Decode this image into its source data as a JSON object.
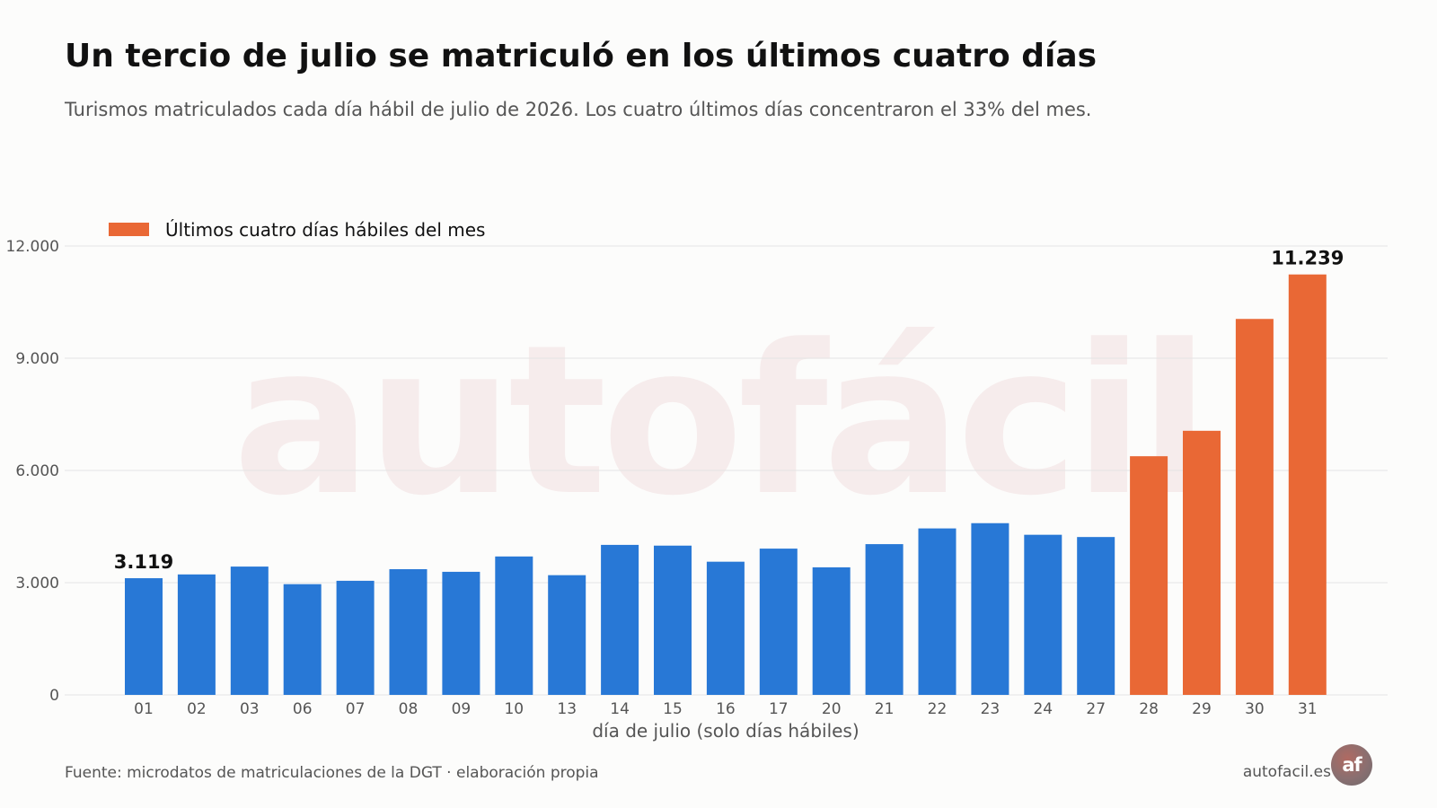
{
  "header": {
    "title": "Un tercio de julio se matriculó en los últimos cuatro días",
    "subtitle": "Turismos matriculados cada día hábil de julio de 2026. Los cuatro últimos días concentraron el 33% del mes."
  },
  "watermark": "autofácil",
  "footer": {
    "source": "Fuente: microdatos de matriculaciones de la DGT · elaboración propia",
    "brand": "autofacil.es",
    "logo_text": "af"
  },
  "colors": {
    "normal": "#2878d6",
    "highlight": "#e96835",
    "grid": "#e4e4e4",
    "text": "#555555",
    "watermark": "#f6ecec"
  },
  "chart_data": {
    "type": "bar",
    "categories": [
      "01",
      "02",
      "03",
      "06",
      "07",
      "08",
      "09",
      "10",
      "13",
      "14",
      "15",
      "16",
      "17",
      "20",
      "21",
      "22",
      "23",
      "24",
      "27",
      "28",
      "29",
      "30",
      "31"
    ],
    "values": [
      3119,
      3220,
      3430,
      2960,
      3050,
      3360,
      3290,
      3700,
      3200,
      4010,
      3990,
      3560,
      3910,
      3410,
      4030,
      4450,
      4590,
      4280,
      4220,
      6380,
      7060,
      10050,
      11239
    ],
    "highlighted": [
      false,
      false,
      false,
      false,
      false,
      false,
      false,
      false,
      false,
      false,
      false,
      false,
      false,
      false,
      false,
      false,
      false,
      false,
      false,
      true,
      true,
      true,
      true
    ],
    "legend": {
      "label": "Últimos cuatro días hábiles del mes",
      "position": "top-left"
    },
    "value_labels": [
      {
        "index": 0,
        "text": "3.119"
      },
      {
        "index": 22,
        "text": "11.239"
      }
    ],
    "xlabel": "día de julio (solo días hábiles)",
    "ylabel": "",
    "ylim": [
      0,
      12000
    ],
    "yticks": [
      0,
      3000,
      6000,
      9000,
      12000
    ],
    "ytick_labels": [
      "0",
      "3.000",
      "6.000",
      "9.000",
      "12.000"
    ],
    "grid": true
  }
}
